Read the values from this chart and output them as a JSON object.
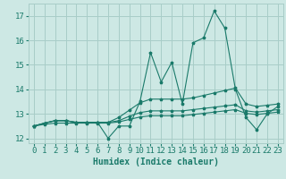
{
  "title": "",
  "xlabel": "Humidex (Indice chaleur)",
  "bg_color": "#cde8e4",
  "grid_color": "#a8cdc8",
  "line_color": "#1a7a6a",
  "xlim": [
    -0.5,
    23.5
  ],
  "ylim": [
    11.8,
    17.5
  ],
  "yticks": [
    12,
    13,
    14,
    15,
    16,
    17
  ],
  "xticks": [
    0,
    1,
    2,
    3,
    4,
    5,
    6,
    7,
    8,
    9,
    10,
    11,
    12,
    13,
    14,
    15,
    16,
    17,
    18,
    19,
    20,
    21,
    22,
    23
  ],
  "series": [
    [
      12.5,
      12.62,
      12.72,
      12.72,
      12.65,
      12.65,
      12.65,
      12.0,
      12.5,
      12.5,
      13.5,
      15.5,
      14.3,
      15.1,
      13.4,
      15.9,
      16.1,
      17.2,
      16.5,
      14.0,
      12.85,
      12.35,
      13.0,
      13.3
    ],
    [
      12.5,
      12.62,
      12.72,
      12.72,
      12.65,
      12.65,
      12.65,
      12.65,
      12.85,
      13.15,
      13.45,
      13.6,
      13.6,
      13.6,
      13.6,
      13.65,
      13.75,
      13.85,
      13.95,
      14.05,
      13.4,
      13.3,
      13.35,
      13.4
    ],
    [
      12.5,
      12.62,
      12.72,
      12.72,
      12.65,
      12.65,
      12.65,
      12.65,
      12.72,
      12.9,
      13.05,
      13.12,
      13.12,
      13.12,
      13.12,
      13.17,
      13.22,
      13.27,
      13.32,
      13.37,
      13.12,
      13.07,
      13.12,
      13.17
    ],
    [
      12.5,
      12.57,
      12.62,
      12.62,
      12.62,
      12.62,
      12.62,
      12.62,
      12.67,
      12.77,
      12.87,
      12.92,
      12.92,
      12.92,
      12.92,
      12.97,
      13.02,
      13.07,
      13.12,
      13.17,
      13.02,
      12.97,
      13.02,
      13.07
    ]
  ],
  "font_color": "#1a7a6a",
  "font_size_label": 7,
  "font_size_tick": 6.5
}
